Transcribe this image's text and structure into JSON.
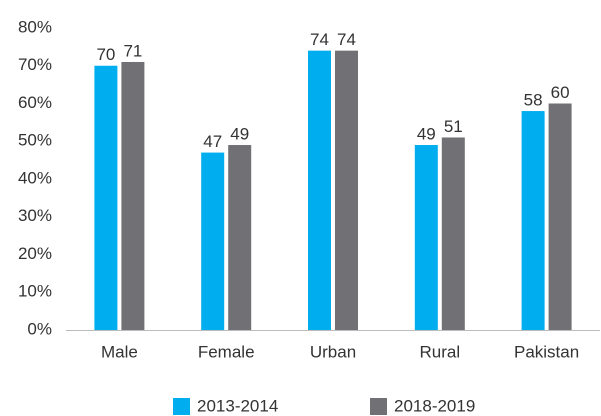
{
  "chart_data": {
    "type": "bar",
    "categories": [
      "Male",
      "Female",
      "Urban",
      "Rural",
      "Pakistan"
    ],
    "series": [
      {
        "name": "2013-2014",
        "color": "#00aeef",
        "values": [
          70,
          47,
          74,
          49,
          58
        ]
      },
      {
        "name": "2018-2019",
        "color": "#717074",
        "values": [
          71,
          49,
          74,
          51,
          60
        ]
      }
    ],
    "ylim": [
      0,
      80
    ],
    "yticks": [
      {
        "value": 0,
        "label": "0%"
      },
      {
        "value": 10,
        "label": "10%"
      },
      {
        "value": 20,
        "label": "20%"
      },
      {
        "value": 30,
        "label": "30%"
      },
      {
        "value": 40,
        "label": "40%"
      },
      {
        "value": 50,
        "label": "50%"
      },
      {
        "value": 60,
        "label": "60%"
      },
      {
        "value": 70,
        "label": "70%"
      },
      {
        "value": 80,
        "label": "80%"
      }
    ],
    "grid": false,
    "legend": "bottom"
  }
}
